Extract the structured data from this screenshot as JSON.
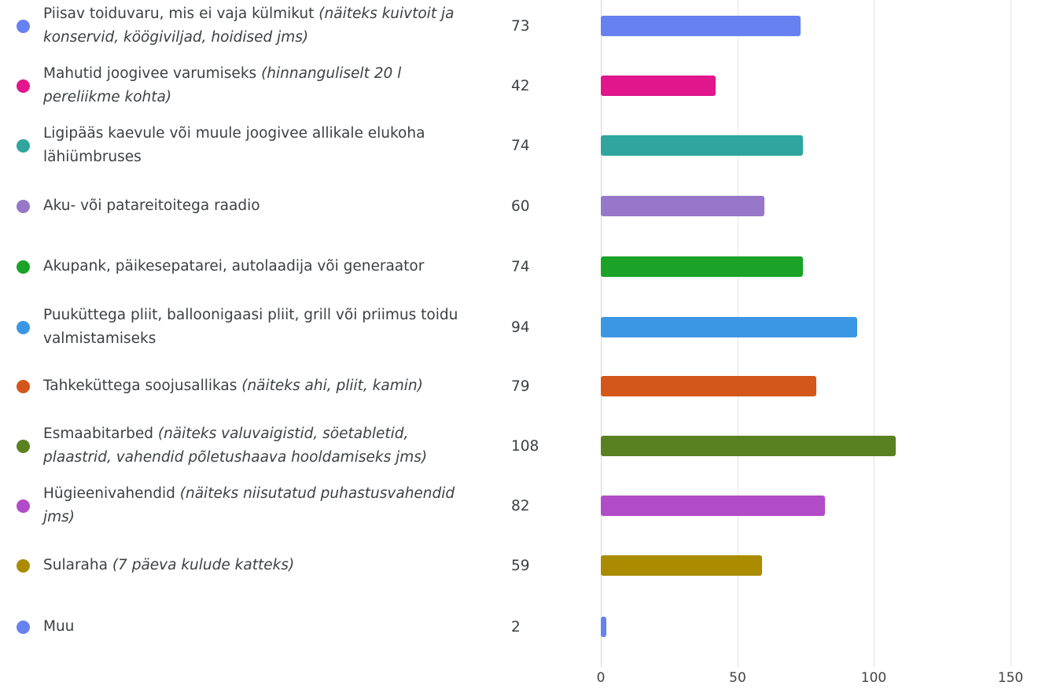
{
  "chart_data": {
    "type": "bar",
    "orientation": "horizontal",
    "xlim": [
      0,
      150
    ],
    "xticks": [
      "0",
      "50",
      "100",
      "150"
    ],
    "grid": true,
    "legend": "left, one entry per bar",
    "items": [
      {
        "label": "Piisav toiduvaru, mis ei vaja külmikut ",
        "note": "(näiteks kuivtoit ja konservid, köögiviljad, hoidised jms)",
        "value": 73,
        "color": "#6781f0"
      },
      {
        "label": "Mahutid joogivee varumiseks ",
        "note": "(hinnanguliselt 20 l pereliikme kohta)",
        "value": 42,
        "color": "#e2168c"
      },
      {
        "label": "Ligipääs kaevule või muule joogivee allikale elukoha lähiümbruses",
        "note": "",
        "value": 74,
        "color": "#2fa59e"
      },
      {
        "label": "Aku- või patareitoitega raadio",
        "note": "",
        "value": 60,
        "color": "#9677c9"
      },
      {
        "label": "Akupank, päikesepatarei, autolaadija või generaator",
        "note": "",
        "value": 74,
        "color": "#1aa326"
      },
      {
        "label": "Puuküttega pliit, balloonigaasi pliit, grill või priimus toidu valmistamiseks",
        "note": "",
        "value": 94,
        "color": "#3b97e3"
      },
      {
        "label": "Tahkeküttega soojusallikas ",
        "note": "(näiteks ahi, pliit, kamin)",
        "value": 79,
        "color": "#d4561b"
      },
      {
        "label": "Esmaabitarbed ",
        "note": "(näiteks valuvaigistid, söetabletid, plaastrid, vahendid põletushaava hooldamiseks jms)",
        "value": 108,
        "color": "#5a8121"
      },
      {
        "label": "Hügieenivahendid ",
        "note": "(näiteks niisutatud puhastusvahendid jms)",
        "value": 82,
        "color": "#b14bc7"
      },
      {
        "label": "Sularaha ",
        "note": "(7 päeva kulude katteks)",
        "value": 59,
        "color": "#ab8b00"
      },
      {
        "label": "Muu",
        "note": "",
        "value": 2,
        "color": "#6781f0"
      }
    ]
  }
}
